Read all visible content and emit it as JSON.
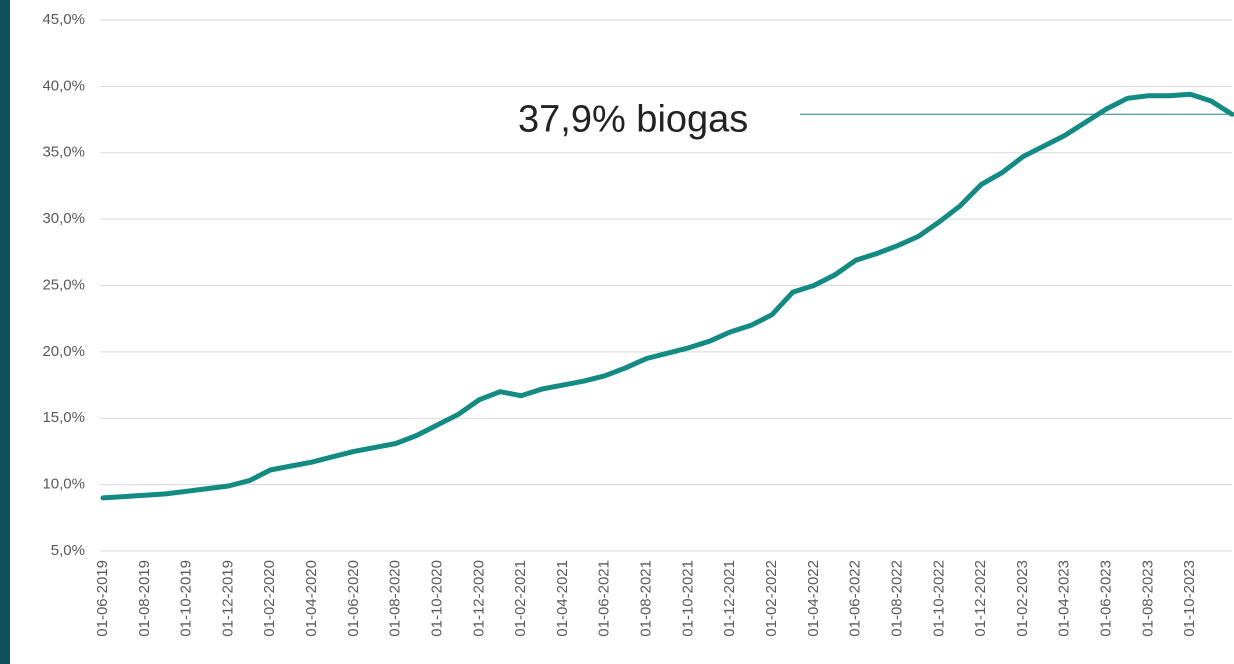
{
  "chart_data": {
    "type": "line",
    "x": [
      "01-06-2019",
      "01-07-2019",
      "01-08-2019",
      "01-09-2019",
      "01-10-2019",
      "01-11-2019",
      "01-12-2019",
      "01-01-2020",
      "01-02-2020",
      "01-03-2020",
      "01-04-2020",
      "01-05-2020",
      "01-06-2020",
      "01-07-2020",
      "01-08-2020",
      "01-09-2020",
      "01-10-2020",
      "01-11-2020",
      "01-12-2020",
      "01-01-2021",
      "01-02-2021",
      "01-03-2021",
      "01-04-2021",
      "01-05-2021",
      "01-06-2021",
      "01-07-2021",
      "01-08-2021",
      "01-09-2021",
      "01-10-2021",
      "01-11-2021",
      "01-12-2021",
      "01-01-2022",
      "01-02-2022",
      "01-03-2022",
      "01-04-2022",
      "01-05-2022",
      "01-06-2022",
      "01-07-2022",
      "01-08-2022",
      "01-09-2022",
      "01-10-2022",
      "01-11-2022",
      "01-12-2022",
      "01-01-2023",
      "01-02-2023",
      "01-03-2023",
      "01-04-2023",
      "01-05-2023",
      "01-06-2023",
      "01-07-2023",
      "01-08-2023",
      "01-09-2023",
      "01-10-2023",
      "01-11-2023",
      "01-12-2023"
    ],
    "values": [
      9.0,
      9.1,
      9.2,
      9.3,
      9.5,
      9.7,
      9.9,
      10.3,
      11.1,
      11.4,
      11.7,
      12.1,
      12.5,
      12.8,
      13.1,
      13.7,
      14.5,
      15.3,
      16.4,
      17.0,
      16.7,
      17.2,
      17.5,
      17.8,
      18.2,
      18.8,
      19.5,
      19.9,
      20.3,
      20.8,
      21.5,
      22.0,
      22.8,
      24.5,
      25.0,
      25.8,
      26.9,
      27.4,
      28.0,
      28.7,
      29.8,
      31.0,
      32.6,
      33.5,
      34.7,
      35.5,
      36.3,
      37.3,
      38.3,
      39.1,
      39.3,
      39.3,
      39.4,
      38.9,
      37.9
    ],
    "color": "#138a82",
    "xlim": [
      "01-06-2019",
      "01-12-2023"
    ],
    "xticks": [
      "01-06-2019",
      "01-08-2019",
      "01-10-2019",
      "01-12-2019",
      "01-02-2020",
      "01-04-2020",
      "01-06-2020",
      "01-08-2020",
      "01-10-2020",
      "01-12-2020",
      "01-02-2021",
      "01-04-2021",
      "01-06-2021",
      "01-08-2021",
      "01-10-2021",
      "01-12-2021",
      "01-02-2022",
      "01-04-2022",
      "01-06-2022",
      "01-08-2022",
      "01-10-2022",
      "01-12-2022",
      "01-02-2023",
      "01-04-2023",
      "01-06-2023",
      "01-08-2023",
      "01-10-2023"
    ],
    "ylim": [
      5,
      45
    ],
    "yticks": [
      {
        "value": 5,
        "label": "5,0%"
      },
      {
        "value": 10,
        "label": "10,0%"
      },
      {
        "value": 15,
        "label": "15,0%"
      },
      {
        "value": 20,
        "label": "20,0%"
      },
      {
        "value": 25,
        "label": "25,0%"
      },
      {
        "value": 30,
        "label": "30,0%"
      },
      {
        "value": 35,
        "label": "35,0%"
      },
      {
        "value": 40,
        "label": "40,0%"
      },
      {
        "value": 45,
        "label": "45,0%"
      }
    ],
    "grid": true,
    "annotation": {
      "text": "37,9% biogas",
      "value": 37.9
    }
  }
}
